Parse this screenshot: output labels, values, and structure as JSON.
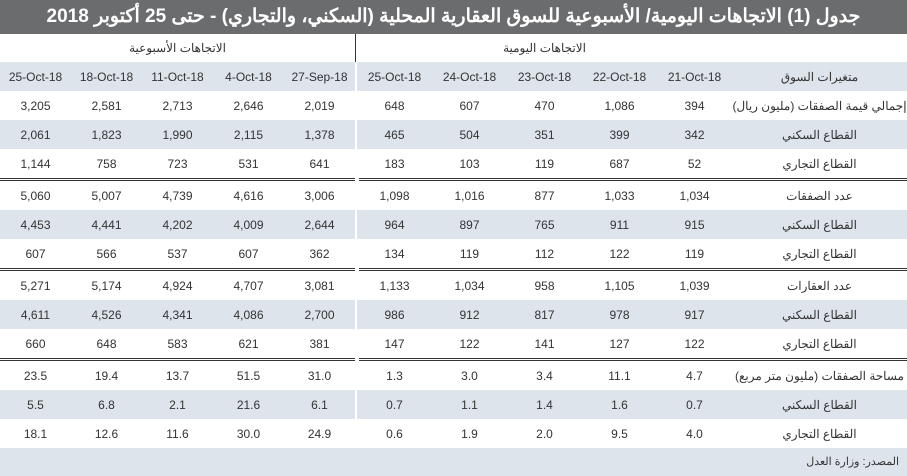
{
  "title": "جدول (1) الاتجاهات اليومية/ الأسبوعية للسوق العقارية المحلية (السكني، والتجاري) - حتى 25 أكتوبر 2018",
  "groups": {
    "weekly": "الاتجاهات الأسبوعية",
    "daily": "الاتجاهات اليومية"
  },
  "header": {
    "label": "متغيرات السوق",
    "weekly": [
      "25-Oct-18",
      "18-Oct-18",
      "11-Oct-18",
      "4-Oct-18",
      "27-Sep-18"
    ],
    "daily": [
      "25-Oct-18",
      "24-Oct-18",
      "23-Oct-18",
      "22-Oct-18",
      "21-Oct-18"
    ]
  },
  "sections": [
    {
      "rows": [
        {
          "label": "إجمالي قيمة الصفقات (مليون ريال)",
          "weekly": [
            "3,205",
            "2,581",
            "2,713",
            "2,646",
            "2,019"
          ],
          "daily": [
            "648",
            "607",
            "470",
            "1,086",
            "394"
          ]
        },
        {
          "label": "القطاع السكني",
          "weekly": [
            "2,061",
            "1,823",
            "1,990",
            "2,115",
            "1,378"
          ],
          "daily": [
            "465",
            "504",
            "351",
            "399",
            "342"
          ]
        },
        {
          "label": "القطاع التجاري",
          "weekly": [
            "1,144",
            "758",
            "723",
            "531",
            "641"
          ],
          "daily": [
            "183",
            "103",
            "119",
            "687",
            "52"
          ]
        }
      ]
    },
    {
      "rows": [
        {
          "label": "عدد الصفقات",
          "weekly": [
            "5,060",
            "5,007",
            "4,739",
            "4,616",
            "3,006"
          ],
          "daily": [
            "1,098",
            "1,016",
            "877",
            "1,033",
            "1,034"
          ]
        },
        {
          "label": "القطاع السكني",
          "weekly": [
            "4,453",
            "4,441",
            "4,202",
            "4,009",
            "2,644"
          ],
          "daily": [
            "964",
            "897",
            "765",
            "911",
            "915"
          ]
        },
        {
          "label": "القطاع التجاري",
          "weekly": [
            "607",
            "566",
            "537",
            "607",
            "362"
          ],
          "daily": [
            "134",
            "119",
            "112",
            "122",
            "119"
          ]
        }
      ]
    },
    {
      "rows": [
        {
          "label": "عدد العقارات",
          "weekly": [
            "5,271",
            "5,174",
            "4,924",
            "4,707",
            "3,081"
          ],
          "daily": [
            "1,133",
            "1,034",
            "958",
            "1,105",
            "1,039"
          ]
        },
        {
          "label": "القطاع السكني",
          "weekly": [
            "4,611",
            "4,526",
            "4,341",
            "4,086",
            "2,700"
          ],
          "daily": [
            "986",
            "912",
            "817",
            "978",
            "917"
          ]
        },
        {
          "label": "القطاع التجاري",
          "weekly": [
            "660",
            "648",
            "583",
            "621",
            "381"
          ],
          "daily": [
            "147",
            "122",
            "141",
            "127",
            "122"
          ]
        }
      ]
    },
    {
      "rows": [
        {
          "label": "مساحة الصفقات (مليون متر مربع)",
          "weekly": [
            "23.5",
            "19.4",
            "13.7",
            "51.5",
            "31.0"
          ],
          "daily": [
            "1.3",
            "3.0",
            "3.4",
            "11.1",
            "4.7"
          ]
        },
        {
          "label": "القطاع السكني",
          "weekly": [
            "5.5",
            "6.8",
            "2.1",
            "21.6",
            "6.1"
          ],
          "daily": [
            "0.7",
            "1.1",
            "1.4",
            "1.6",
            "0.7"
          ]
        },
        {
          "label": "القطاع التجاري",
          "weekly": [
            "18.1",
            "12.6",
            "11.6",
            "30.0",
            "24.9"
          ],
          "daily": [
            "0.6",
            "1.9",
            "2.0",
            "9.5",
            "4.0"
          ]
        }
      ]
    }
  ],
  "source": "المصدر: وزارة العدل"
}
